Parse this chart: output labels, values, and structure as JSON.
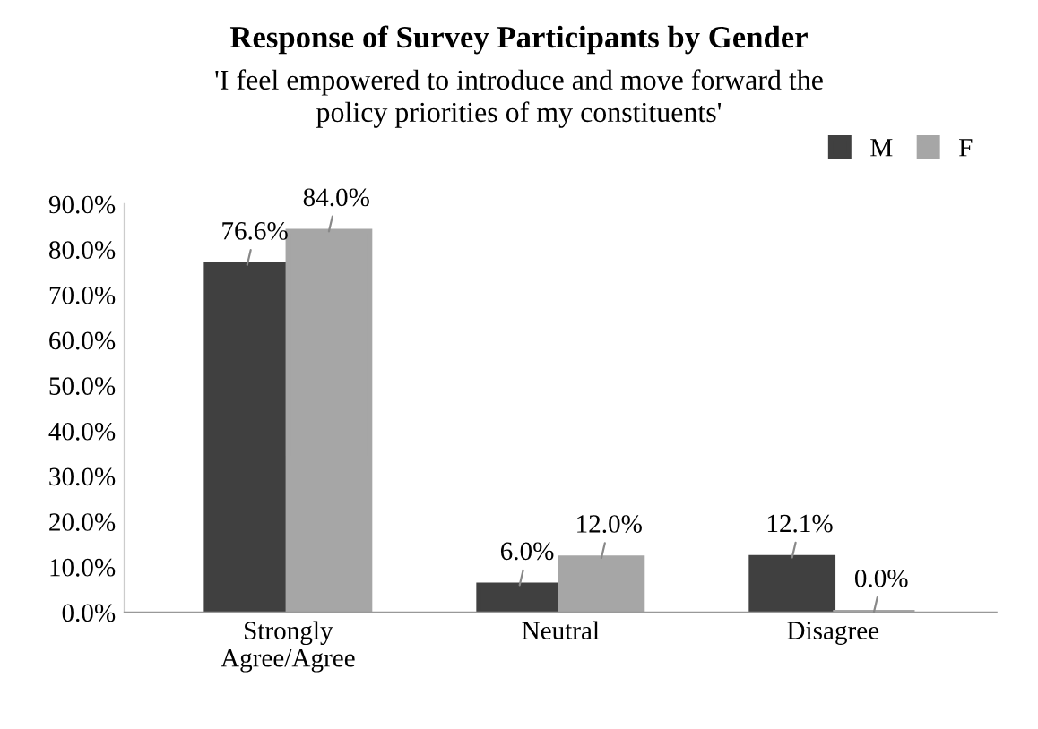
{
  "chart_data": {
    "type": "bar",
    "title": "Response of Survey Participants by Gender",
    "subtitle": "'I feel empowered to introduce and move forward the\npolicy priorities of my constituents'",
    "categories": [
      "Strongly\nAgree/Agree",
      "Neutral",
      "Disagree"
    ],
    "series": [
      {
        "name": "M",
        "color": "#404040",
        "values": [
          76.6,
          6.0,
          12.1
        ],
        "value_labels": [
          "76.6%",
          "6.0%",
          "12.1%"
        ]
      },
      {
        "name": "F",
        "color": "#a6a6a6",
        "values": [
          84.0,
          12.0,
          0.0
        ],
        "value_labels": [
          "84.0%",
          "12.0%",
          "0.0%"
        ]
      }
    ],
    "ylim": [
      0,
      90
    ],
    "yticks": [
      {
        "value": 0,
        "label": "0.0%"
      },
      {
        "value": 10,
        "label": "10.0%"
      },
      {
        "value": 20,
        "label": "20.0%"
      },
      {
        "value": 30,
        "label": "30.0%"
      },
      {
        "value": 40,
        "label": "40.0%"
      },
      {
        "value": 50,
        "label": "50.0%"
      },
      {
        "value": 60,
        "label": "60.0%"
      },
      {
        "value": 70,
        "label": "70.0%"
      },
      {
        "value": 80,
        "label": "80.0%"
      },
      {
        "value": 90,
        "label": "90.0%"
      }
    ],
    "grid": false,
    "legend": "top right"
  }
}
